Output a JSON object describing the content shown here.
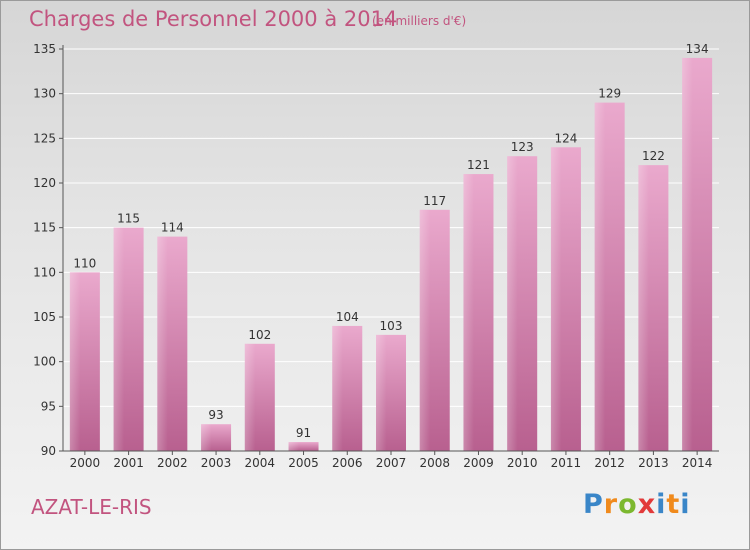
{
  "header": {
    "title": "Charges de Personnel 2000 à 2014",
    "subtitle": "(en milliers d'€)"
  },
  "footer": {
    "commune": "AZAT-LE-RIS",
    "logo_letters": [
      "P",
      "r",
      "o",
      "x",
      "i",
      "t",
      "i"
    ]
  },
  "colors": {
    "bar": "#c46496",
    "bar_light": "#e6a3c8",
    "text_accent": "#c2547f"
  },
  "chart_data": {
    "type": "bar",
    "title": "Charges de Personnel 2000 à 2014",
    "subtitle": "(en milliers d'€)",
    "xlabel": "",
    "ylabel": "",
    "categories": [
      "2000",
      "2001",
      "2002",
      "2003",
      "2004",
      "2005",
      "2006",
      "2007",
      "2008",
      "2009",
      "2010",
      "2011",
      "2012",
      "2013",
      "2014"
    ],
    "values": [
      110,
      115,
      114,
      93,
      102,
      91,
      104,
      103,
      117,
      121,
      123,
      124,
      129,
      122,
      134
    ],
    "ylim": [
      90,
      135
    ],
    "yticks": [
      90,
      95,
      100,
      105,
      110,
      115,
      120,
      125,
      130,
      135
    ],
    "grid": true
  }
}
